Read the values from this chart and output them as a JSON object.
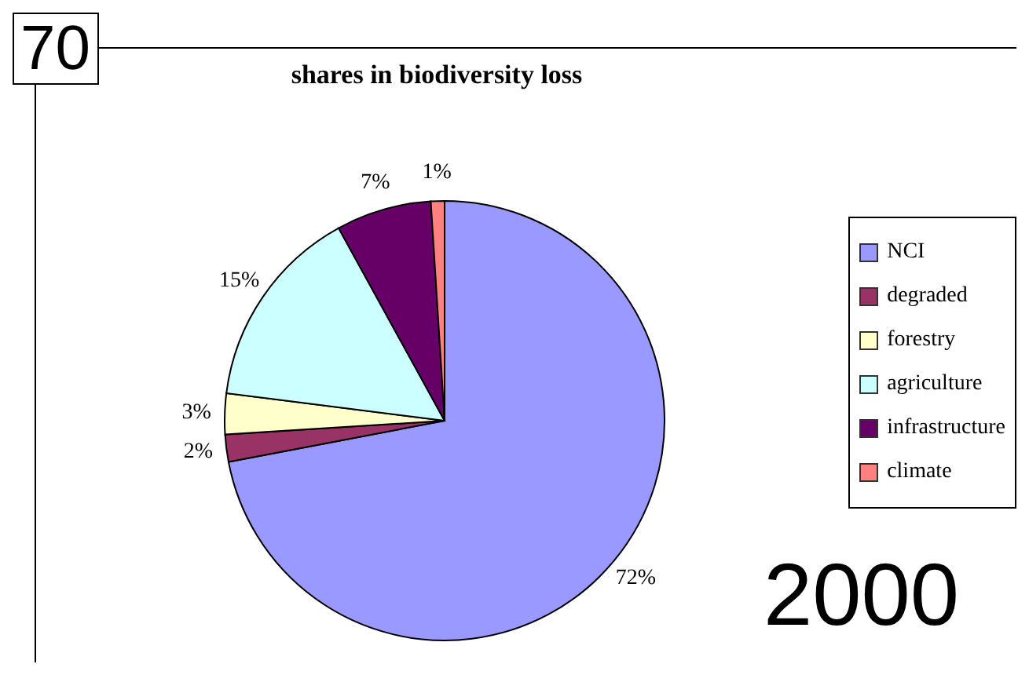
{
  "chart_data": {
    "type": "pie",
    "title": "shares in biodiversity loss",
    "categories": [
      "NCI",
      "degraded",
      "forestry",
      "agriculture",
      "infrastructure",
      "climate"
    ],
    "values": [
      72,
      2,
      3,
      15,
      7,
      1
    ],
    "value_labels": [
      "72%",
      "2%",
      "3%",
      "15%",
      "7%",
      "1%"
    ],
    "colors": [
      "#9999ff",
      "#993366",
      "#ffffcc",
      "#ccffff",
      "#660066",
      "#ff8080"
    ],
    "legend": "right",
    "annotations": [
      "70",
      "2000"
    ]
  }
}
